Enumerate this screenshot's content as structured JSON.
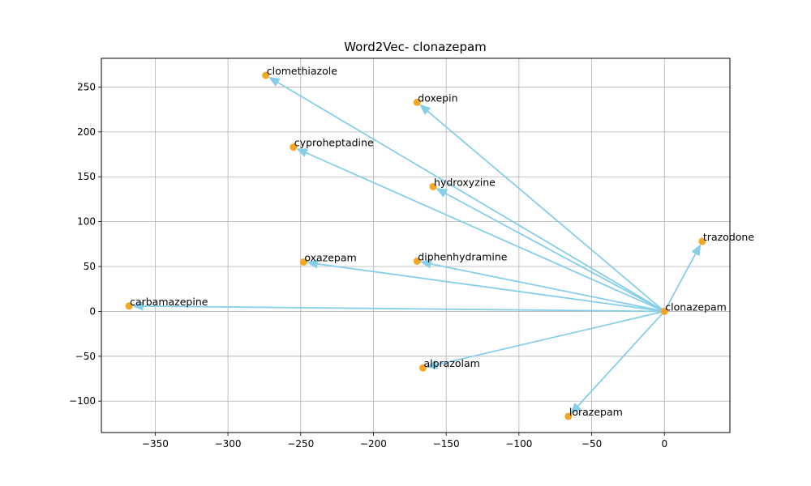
{
  "chart_data": {
    "type": "scatter",
    "title": "Word2Vec- clonazepam",
    "xlabel": "",
    "ylabel": "",
    "xlim": [
      -387,
      45
    ],
    "ylim": [
      -135,
      282
    ],
    "xticks": [
      -350,
      -300,
      -250,
      -200,
      -150,
      -100,
      -50,
      0
    ],
    "yticks": [
      -100,
      -50,
      0,
      50,
      100,
      150,
      200,
      250
    ],
    "grid": true,
    "origin": {
      "label": "clonazepam",
      "x": 0,
      "y": 0
    },
    "points": [
      {
        "label": "clomethiazole",
        "x": -274,
        "y": 263
      },
      {
        "label": "doxepin",
        "x": -170,
        "y": 233
      },
      {
        "label": "cyproheptadine",
        "x": -255,
        "y": 183
      },
      {
        "label": "hydroxyzine",
        "x": -159,
        "y": 139
      },
      {
        "label": "trazodone",
        "x": 26,
        "y": 78
      },
      {
        "label": "oxazepam",
        "x": -248,
        "y": 55
      },
      {
        "label": "diphenhydramine",
        "x": -170,
        "y": 56
      },
      {
        "label": "carbamazepine",
        "x": -368,
        "y": 6
      },
      {
        "label": "alprazolam",
        "x": -166,
        "y": -63
      },
      {
        "label": "lorazepam",
        "x": -66,
        "y": -117
      }
    ],
    "colors": {
      "point": "#f5a623",
      "arrow": "#87ceeb",
      "grid": "#b0b0b0"
    }
  }
}
